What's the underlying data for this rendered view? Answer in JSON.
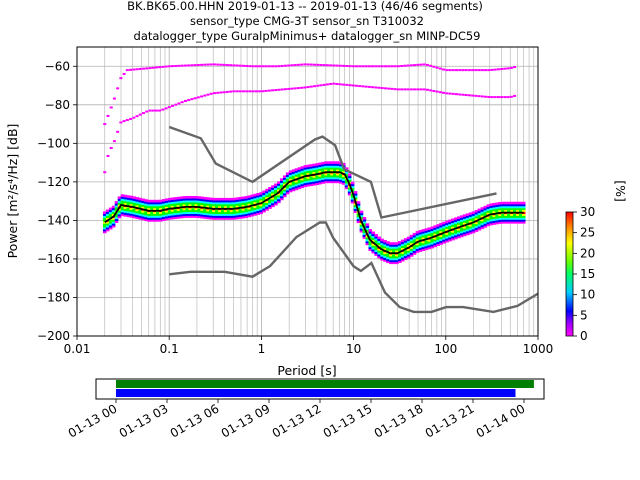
{
  "title": {
    "line1": "BK.BK65.00.HHN   2019-01-13 -- 2019-01-13  (46/46 segments)",
    "line2": "sensor_type CMG-3T sensor_sn T310032",
    "line3": "datalogger_type GuralpMinimus+ datalogger_sn MINP-DC59"
  },
  "colors": {
    "median": "#000000",
    "noise_models": "#666666",
    "coverage_green": "#008000",
    "coverage_blue": "#0000ff",
    "colormap": [
      "#ff00ff",
      "#0000ff",
      "#00ffff",
      "#00ff00",
      "#ffff00",
      "#ff0000"
    ]
  },
  "chart_data": [
    {
      "type": "heatmap",
      "chart": "ppsd",
      "xlabel": "Period [s]",
      "ylabel": "Power [m²/s⁴/Hz] [dB]",
      "xscale": "log",
      "xlim": [
        0.01,
        1000
      ],
      "ylim": [
        -200,
        -50
      ],
      "x_ticks": [
        "0.01",
        "0.1",
        "1",
        "10",
        "100",
        "1000"
      ],
      "y_ticks": [
        "−60",
        "−80",
        "−100",
        "−120",
        "−140",
        "−160",
        "−180",
        "−200"
      ],
      "grid": true,
      "colorbar": {
        "label": "[%]",
        "range": [
          0,
          30
        ],
        "ticks": [
          "0",
          "5",
          "10",
          "15",
          "20",
          "25",
          "30"
        ]
      },
      "series": [
        {
          "name": "median",
          "period": [
            0.02,
            0.025,
            0.03,
            0.04,
            0.06,
            0.08,
            0.1,
            0.15,
            0.2,
            0.3,
            0.5,
            0.7,
            1,
            1.5,
            2,
            3,
            4,
            5,
            6,
            7,
            8,
            9,
            10,
            12,
            15,
            20,
            25,
            30,
            40,
            50,
            70,
            100,
            150,
            200,
            300,
            400,
            500,
            600,
            700
          ],
          "power": [
            -141,
            -138,
            -132,
            -133,
            -135,
            -135,
            -134,
            -133,
            -133,
            -134,
            -134,
            -133,
            -131,
            -126,
            -120,
            -117,
            -116,
            -115,
            -115,
            -115,
            -116,
            -121,
            -127,
            -140,
            -150,
            -155,
            -157,
            -157,
            -154,
            -151,
            -149,
            -146,
            -143,
            -141,
            -137,
            -136,
            -136,
            -136,
            -136
          ]
        },
        {
          "name": "nhnm",
          "period": [
            0.1,
            0.22,
            0.32,
            0.8,
            3.8,
            4.6,
            6.3,
            7.9,
            15.4,
            20,
            354.8
          ],
          "power": [
            -91.5,
            -97.4,
            -110.5,
            -120,
            -98,
            -96.5,
            -101,
            -113.5,
            -120,
            -138.5,
            -126
          ]
        },
        {
          "name": "nlnm",
          "period": [
            0.1,
            0.17,
            0.4,
            0.8,
            1.24,
            2.4,
            4.3,
            5,
            6,
            10,
            12,
            15.6,
            21.9,
            31.6,
            45,
            70,
            101,
            154,
            328,
            600,
            1000
          ],
          "power": [
            -168,
            -166.7,
            -166.7,
            -169.2,
            -163.7,
            -148.6,
            -141.1,
            -141.1,
            -149,
            -163.8,
            -166.2,
            -162.1,
            -177.5,
            -185,
            -187.5,
            -187.5,
            -185,
            -185,
            -187.5,
            -184.4,
            -178
          ]
        },
        {
          "name": "upper",
          "period": [
            0.02,
            0.022,
            0.025,
            0.03,
            0.035,
            0.06,
            0.1,
            0.3,
            0.8,
            1.5,
            3,
            10,
            30,
            60,
            100,
            300,
            500,
            600
          ],
          "power": [
            -90,
            -85,
            -78,
            -66,
            -62,
            -61,
            -60,
            -59,
            -60,
            -60,
            -59,
            -60,
            -60,
            -59,
            -62,
            -62,
            -61,
            -60
          ]
        },
        {
          "name": "lower",
          "period": [
            0.02,
            0.022,
            0.025,
            0.03,
            0.04,
            0.06,
            0.08,
            0.15,
            0.3,
            0.5,
            1,
            3,
            6,
            10,
            30,
            60,
            100,
            300,
            500,
            600
          ],
          "power": [
            -115,
            -105,
            -100,
            -89,
            -87,
            -83,
            -83,
            -78,
            -74,
            -73,
            -73,
            -71,
            -69,
            -70,
            -72,
            -72,
            -74,
            -76,
            -76,
            -75
          ]
        }
      ]
    },
    {
      "type": "bar",
      "chart": "time_coverage",
      "x_ticks": [
        "01-13 00",
        "01-13 03",
        "01-13 06",
        "01-13 09",
        "01-13 12",
        "01-13 15",
        "01-13 18",
        "01-13 21",
        "01-14 00"
      ],
      "series": [
        {
          "start": "01-13 00:00",
          "end": "01-14 00:35"
        },
        {
          "start": "01-13 00:00",
          "end": "01-13 23:30"
        }
      ]
    }
  ]
}
